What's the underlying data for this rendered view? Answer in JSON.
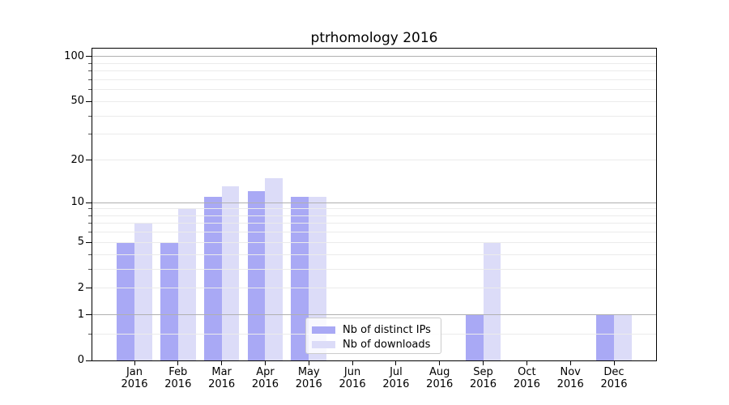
{
  "figure": {
    "background": "#ffffff"
  },
  "chart_data": {
    "type": "bar",
    "title": "ptrhomology 2016",
    "categories": [
      "Jan",
      "Feb",
      "Mar",
      "Apr",
      "May",
      "Jun",
      "Jul",
      "Aug",
      "Sep",
      "Oct",
      "Nov",
      "Dec"
    ],
    "category_year": "2016",
    "series": [
      {
        "name": "Nb of distinct IPs",
        "color": "#a9a9f5",
        "values": [
          5,
          5,
          11,
          12,
          11,
          0,
          0,
          0,
          1,
          0,
          0,
          1
        ]
      },
      {
        "name": "Nb of downloads",
        "color": "#dcdcf8",
        "values": [
          7,
          9,
          13,
          15,
          11,
          0,
          0,
          0,
          5,
          0,
          0,
          1
        ]
      }
    ],
    "xlabel": "",
    "ylabel": "",
    "yscale": "log1p",
    "ylim": [
      0,
      113
    ],
    "yticks": [
      0,
      1,
      2,
      5,
      10,
      20,
      50,
      100
    ],
    "major_gridlines": [
      1,
      10,
      100
    ],
    "minor_gridlines": [
      0.5,
      2,
      3,
      4,
      5,
      6,
      7,
      8,
      9,
      20,
      30,
      40,
      50,
      60,
      70,
      80,
      90
    ],
    "grid": "on",
    "legend_position": "lower center",
    "colors": {
      "major_grid": "#b0b0b0",
      "minor_grid": "#ebebeb",
      "spine": "#000000",
      "text": "#000000"
    }
  }
}
